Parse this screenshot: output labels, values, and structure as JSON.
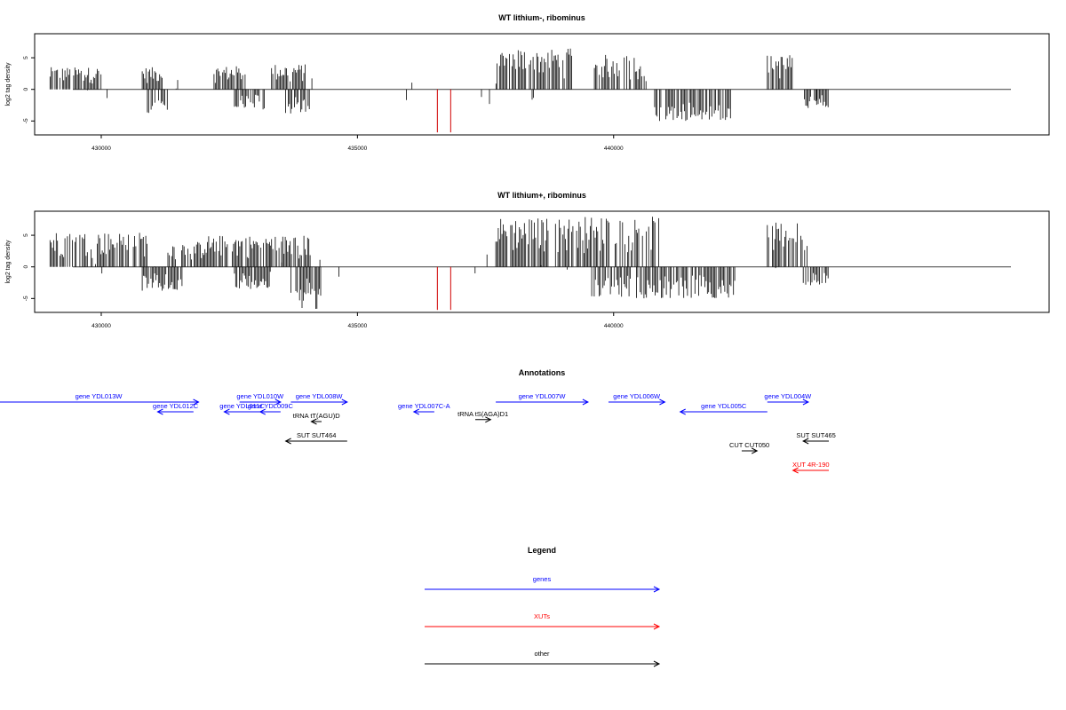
{
  "chart_data": [
    {
      "type": "bar",
      "title": "WT lithium-, ribominus",
      "ylabel": "log2 tag density",
      "xlim": [
        428700,
        448500
      ],
      "ylim": [
        -7.2,
        8.8
      ],
      "x_ticks": [
        430000,
        435000,
        440000
      ],
      "y_ticks": [
        -5,
        0,
        5
      ],
      "reference_line_color": "#d00000",
      "bar_color": "#000000",
      "reference_lines": [
        436560,
        436820
      ],
      "reference_line_range": [
        -6.8,
        0
      ],
      "density": {
        "positive_segments": [
          {
            "x": [
              429000,
              430000
            ],
            "y_max": 3.5
          },
          {
            "x": [
              430800,
              431200
            ],
            "y_max": 3.5
          },
          {
            "x": [
              432200,
              432900
            ],
            "y_max": 3.7
          },
          {
            "x": [
              433300,
              434000
            ],
            "y_max": 4.0
          },
          {
            "x": [
              437700,
              439200
            ],
            "y_max": 6.5
          },
          {
            "x": [
              439600,
              440600
            ],
            "y_max": 5.5
          },
          {
            "x": [
              443000,
              443500
            ],
            "y_max": 5.5
          }
        ],
        "negative_segments": [
          {
            "x": [
              430900,
              431300
            ],
            "y_min": -3.8
          },
          {
            "x": [
              432600,
              433200
            ],
            "y_min": -3.2
          },
          {
            "x": [
              433600,
              434100
            ],
            "y_min": -4.0
          },
          {
            "x": [
              440800,
              442300
            ],
            "y_min": -5.0
          },
          {
            "x": [
              443700,
              444200
            ],
            "y_min": -3.0
          }
        ]
      }
    },
    {
      "type": "bar",
      "title": "WT lithium+, ribominus",
      "ylabel": "log2 tag density",
      "xlim": [
        428700,
        448500
      ],
      "ylim": [
        -7.2,
        8.8
      ],
      "x_ticks": [
        430000,
        435000,
        440000
      ],
      "y_ticks": [
        -5,
        0,
        5
      ],
      "reference_line_color": "#d00000",
      "bar_color": "#000000",
      "reference_lines": [
        436560,
        436820
      ],
      "reference_line_range": [
        -6.8,
        0
      ],
      "density": {
        "positive_segments": [
          {
            "x": [
              429000,
              430900
            ],
            "y_max": 5.5
          },
          {
            "x": [
              431300,
              432000
            ],
            "y_max": 4.0
          },
          {
            "x": [
              432000,
              433300
            ],
            "y_max": 5.0
          },
          {
            "x": [
              433300,
              434100
            ],
            "y_max": 5.0
          },
          {
            "x": [
              437700,
              439300
            ],
            "y_max": 7.8
          },
          {
            "x": [
              439300,
              440900
            ],
            "y_max": 8.0
          },
          {
            "x": [
              443000,
              443800
            ],
            "y_max": 7.0
          }
        ],
        "negative_segments": [
          {
            "x": [
              430800,
              431600
            ],
            "y_min": -4.0
          },
          {
            "x": [
              432600,
              433300
            ],
            "y_min": -3.5
          },
          {
            "x": [
              433700,
              434300
            ],
            "y_min": -6.8
          },
          {
            "x": [
              439500,
              442400
            ],
            "y_min": -5.0
          },
          {
            "x": [
              443700,
              444200
            ],
            "y_min": -3.0
          }
        ]
      }
    }
  ],
  "annotations": {
    "title": "Annotations",
    "xlim": [
      428700,
      448500
    ],
    "features": [
      {
        "label": "gene YDL013W",
        "start": 428000,
        "end": 431900,
        "dir": "right",
        "row": 0,
        "color": "#0000ff"
      },
      {
        "label": "gene YDL012C",
        "start": 431100,
        "end": 431800,
        "dir": "left",
        "row": 1,
        "color": "#0000ff"
      },
      {
        "label": "gene YDL010W",
        "start": 432700,
        "end": 433500,
        "dir": "right",
        "row": 0,
        "color": "#0000ff"
      },
      {
        "label": "gene YDL011C",
        "start": 432400,
        "end": 433100,
        "dir": "left",
        "row": 1,
        "color": "#0000ff"
      },
      {
        "label": "gene YDL009C",
        "start": 433100,
        "end": 433500,
        "dir": "left",
        "row": 1,
        "color": "#0000ff"
      },
      {
        "label": "gene YDL008W",
        "start": 433700,
        "end": 434800,
        "dir": "right",
        "row": 0,
        "color": "#0000ff"
      },
      {
        "label": "tRNA tT(AGU)D",
        "start": 434100,
        "end": 434300,
        "dir": "left",
        "row": 2,
        "color": "#000000"
      },
      {
        "label": "SUT SUT464",
        "start": 433600,
        "end": 434800,
        "dir": "left",
        "row": 4,
        "color": "#000000"
      },
      {
        "label": "gene YDL007C-A",
        "start": 436100,
        "end": 436500,
        "dir": "left",
        "row": 1,
        "color": "#0000ff"
      },
      {
        "label": "tRNA tS(AGA)D1",
        "start": 437300,
        "end": 437600,
        "dir": "right",
        "row": 1.8,
        "color": "#000000"
      },
      {
        "label": "gene YDL007W",
        "start": 437700,
        "end": 439500,
        "dir": "right",
        "row": 0,
        "color": "#0000ff"
      },
      {
        "label": "gene YDL006W",
        "start": 439900,
        "end": 441000,
        "dir": "right",
        "row": 0,
        "color": "#0000ff"
      },
      {
        "label": "gene YDL005C",
        "start": 441300,
        "end": 443000,
        "dir": "left",
        "row": 1,
        "color": "#0000ff"
      },
      {
        "label": "gene YDL004W",
        "start": 443000,
        "end": 443800,
        "dir": "right",
        "row": 0,
        "color": "#0000ff"
      },
      {
        "label": "CUT CUT050",
        "start": 442500,
        "end": 442800,
        "dir": "right",
        "row": 5,
        "color": "#000000"
      },
      {
        "label": "SUT SUT465",
        "start": 443700,
        "end": 444200,
        "dir": "left",
        "row": 4,
        "color": "#000000"
      },
      {
        "label": "XUT 4R-190",
        "start": 443500,
        "end": 444200,
        "dir": "left",
        "row": 7,
        "color": "#ff0000"
      }
    ]
  },
  "legend": {
    "title": "Legend",
    "entries": [
      {
        "label": "genes",
        "color": "#0000ff"
      },
      {
        "label": "XUTs",
        "color": "#ff0000"
      },
      {
        "label": "other",
        "color": "#000000"
      }
    ]
  }
}
